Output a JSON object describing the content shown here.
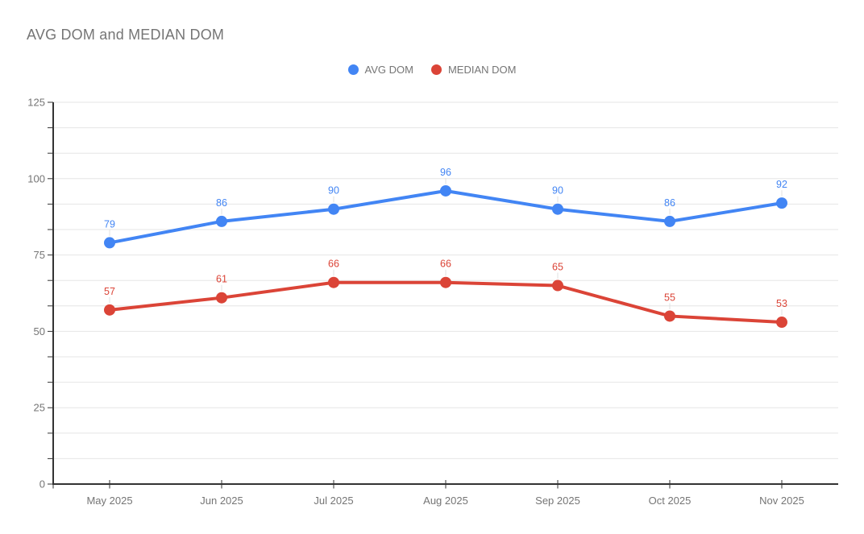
{
  "title": "AVG DOM and MEDIAN DOM",
  "chart_data": {
    "type": "line",
    "title": "AVG DOM and MEDIAN DOM",
    "categories": [
      "May 2025",
      "Jun 2025",
      "Jul 2025",
      "Aug 2025",
      "Sep 2025",
      "Oct 2025",
      "Nov 2025"
    ],
    "series": [
      {
        "name": "AVG DOM",
        "color": "#4285f4",
        "values": [
          79,
          86,
          90,
          96,
          90,
          86,
          92
        ]
      },
      {
        "name": "MEDIAN DOM",
        "color": "#db4437",
        "values": [
          57,
          61,
          66,
          66,
          65,
          55,
          53
        ]
      }
    ],
    "xlabel": "",
    "ylabel": "",
    "ylim": [
      0,
      125
    ],
    "yticks": [
      0,
      25,
      50,
      75,
      100,
      125
    ],
    "minor_gridlines_per_major": 3,
    "grid": true,
    "legend_position": "top",
    "point_labels": true
  }
}
